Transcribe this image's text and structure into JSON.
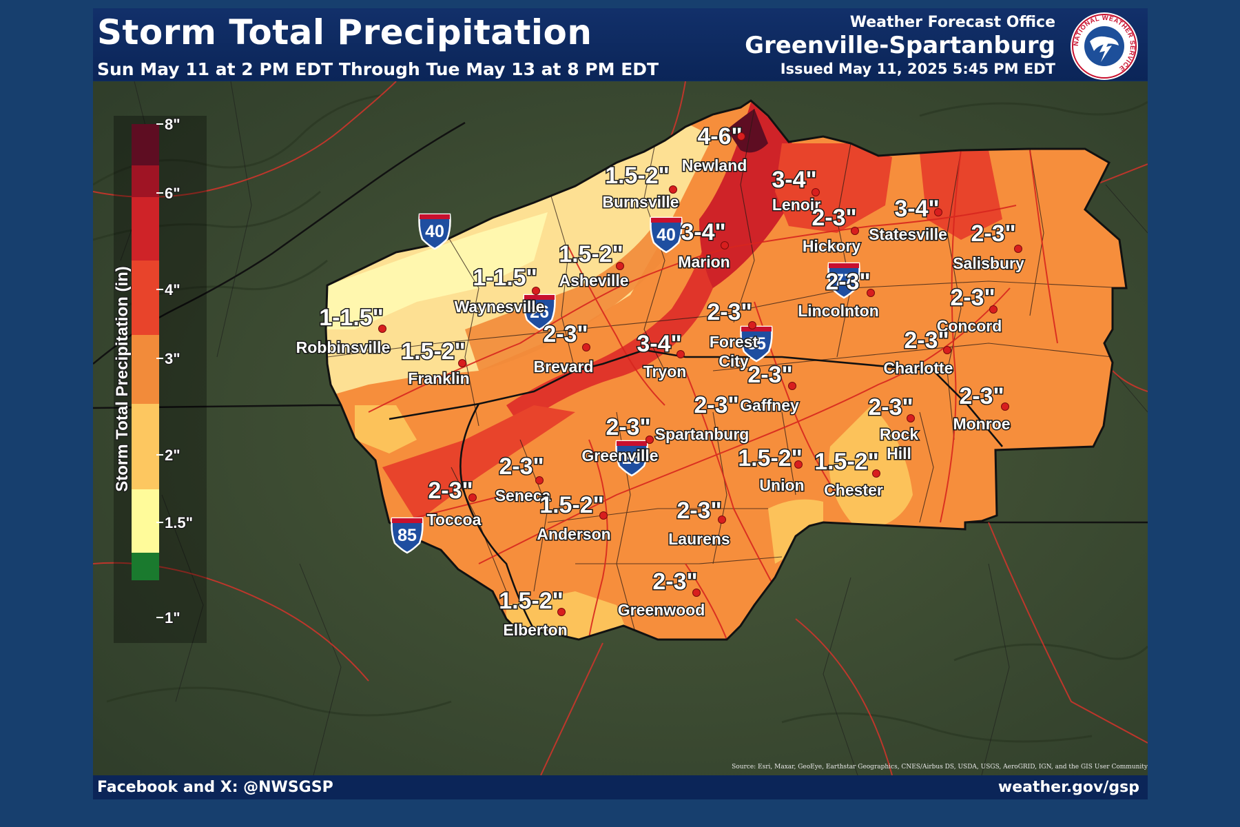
{
  "header": {
    "title": "Storm Total Precipitation",
    "subtitle": "Sun May 11 at 2 PM EDT Through Tue May 13 at 8 PM EDT",
    "office_label": "Weather Forecast Office",
    "office_name": "Greenville-Spartanburg",
    "issued": "Issued May 11, 2025 5:45 PM EDT",
    "logo_text": "NATIONAL WEATHER SERVICE"
  },
  "footer": {
    "social": "Facebook and X:  @NWSGSP",
    "website": "weather.gov/gsp"
  },
  "map_source": "Source: Esri, Maxar, GeoEye, Earthstar Geographics, CNES/Airbus DS, USDA, USGS, AeroGRID, IGN, and the GIS User Community",
  "legend": {
    "title": "Storm Total Precipitation (in)",
    "ticks": [
      "8\"",
      "6\"",
      "4\"",
      "3\"",
      "2\"",
      "1.5\"",
      "1\""
    ],
    "colors": [
      "#5e0d22",
      "#9f1424",
      "#cf2328",
      "#e8442b",
      "#f28b3a",
      "#fdc760",
      "#fffb9a",
      "#1a7a2e"
    ]
  },
  "interstates": [
    {
      "name": "interstate-40-west",
      "number": "40"
    },
    {
      "name": "interstate-40-east",
      "number": "40"
    },
    {
      "name": "interstate-26-north",
      "number": "26"
    },
    {
      "name": "interstate-26-south",
      "number": "26"
    },
    {
      "name": "interstate-85-east",
      "number": "85"
    },
    {
      "name": "interstate-85-west",
      "number": "85"
    },
    {
      "name": "interstate-77",
      "number": "77"
    }
  ],
  "locations": [
    {
      "city": "Newland",
      "range": "4-6\""
    },
    {
      "city": "Burnsville",
      "range": "1.5-2\""
    },
    {
      "city": "Lenoir",
      "range": "3-4\""
    },
    {
      "city": "Hickory",
      "range": "2-3\""
    },
    {
      "city": "Statesville",
      "range": "3-4\""
    },
    {
      "city": "Salisbury",
      "range": "2-3\""
    },
    {
      "city": "Marion",
      "range": "3-4\""
    },
    {
      "city": "Asheville",
      "range": "1.5-2\""
    },
    {
      "city": "Waynesville",
      "range": "1-1.5\""
    },
    {
      "city": "Robbinsville",
      "range": "1-1.5\""
    },
    {
      "city": "Franklin",
      "range": "1.5-2\""
    },
    {
      "city": "Brevard",
      "range": "2-3\""
    },
    {
      "city": "Tryon",
      "range": "3-4\""
    },
    {
      "city": "Forest City",
      "range": "2-3\""
    },
    {
      "city": "Lincolnton",
      "range": "2-3\""
    },
    {
      "city": "Concord",
      "range": "2-3\""
    },
    {
      "city": "Charlotte",
      "range": "2-3\""
    },
    {
      "city": "Monroe",
      "range": "2-3\""
    },
    {
      "city": "Gaffney",
      "range": "2-3\""
    },
    {
      "city": "Spartanburg",
      "range": "2-3\""
    },
    {
      "city": "Rock Hill",
      "range": "2-3\""
    },
    {
      "city": "Greenville",
      "range": "2-3\""
    },
    {
      "city": "Seneca",
      "range": "2-3\""
    },
    {
      "city": "Union",
      "range": "1.5-2\""
    },
    {
      "city": "Chester",
      "range": "1.5-2\""
    },
    {
      "city": "Toccoa",
      "range": "2-3\""
    },
    {
      "city": "Anderson",
      "range": "1.5-2\""
    },
    {
      "city": "Laurens",
      "range": "2-3\""
    },
    {
      "city": "Greenwood",
      "range": "2-3\""
    },
    {
      "city": "Elberton",
      "range": "1.5-2\""
    }
  ]
}
